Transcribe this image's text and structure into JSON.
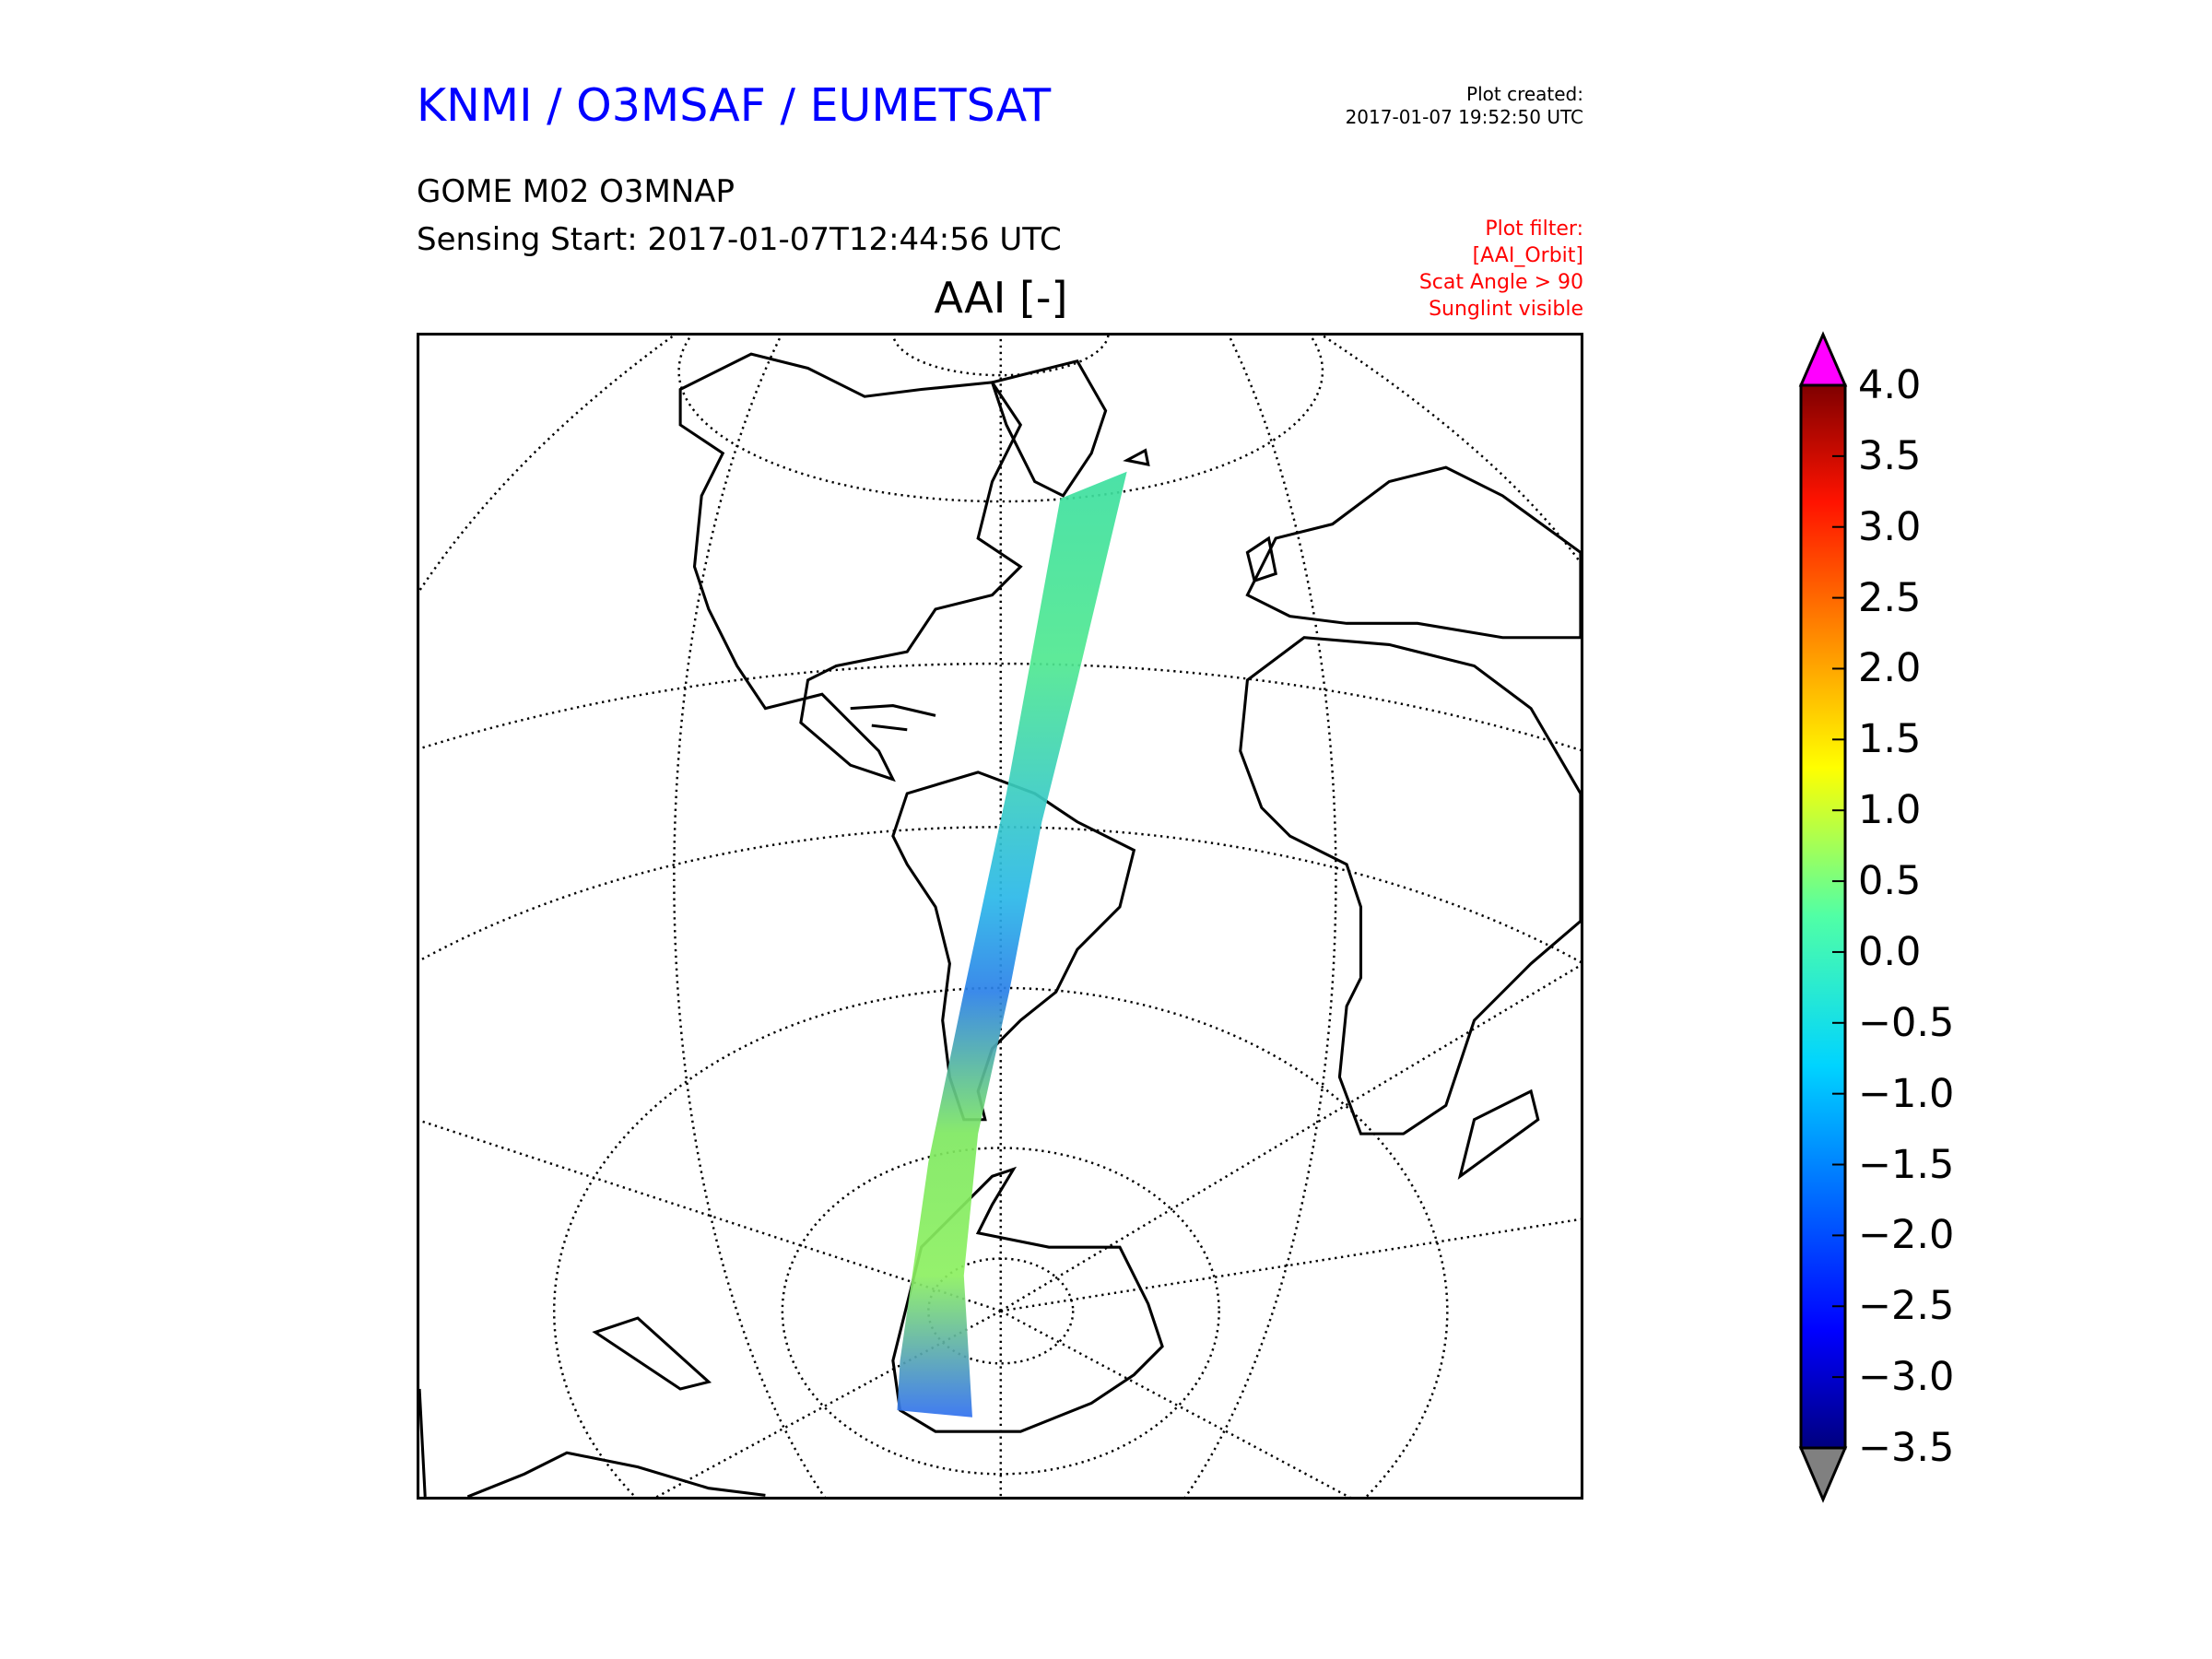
{
  "header": {
    "organization": "KNMI / O3MSAF / EUMETSAT",
    "created_label": "Plot created:",
    "created_value": "2017-01-07 19:52:50 UTC",
    "product": "GOME M02 O3MNAP",
    "sensing_start": "Sensing Start: 2017-01-07T12:44:56 UTC",
    "filter_lines": [
      "Plot filter:",
      "[AAI_Orbit]",
      "Scat Angle > 90",
      "Sunglint visible"
    ]
  },
  "chart_data": {
    "type": "heatmap",
    "title": "AAI [-]",
    "projection": "orthographic map, Americas / Atlantic view, with dotted graticule",
    "swath": "single GOME orbit swath from Greenland through the Caribbean and South America to Antarctica",
    "colorbar": {
      "colormap": "jet",
      "range": [
        -3.5,
        4.0
      ],
      "ticks": [
        4.0,
        3.5,
        3.0,
        2.5,
        2.0,
        1.5,
        1.0,
        0.5,
        0.0,
        -0.5,
        -1.0,
        -1.5,
        -2.0,
        -2.5,
        -3.0,
        -3.5
      ],
      "tick_labels": [
        "4.0",
        "3.5",
        "3.0",
        "2.5",
        "2.0",
        "1.5",
        "1.0",
        "0.5",
        "0.0",
        "−0.5",
        "−1.0",
        "−1.5",
        "−2.0",
        "−2.5",
        "−3.0",
        "−3.5"
      ],
      "over_color": "#ff00ff",
      "under_color": "#808080"
    }
  }
}
